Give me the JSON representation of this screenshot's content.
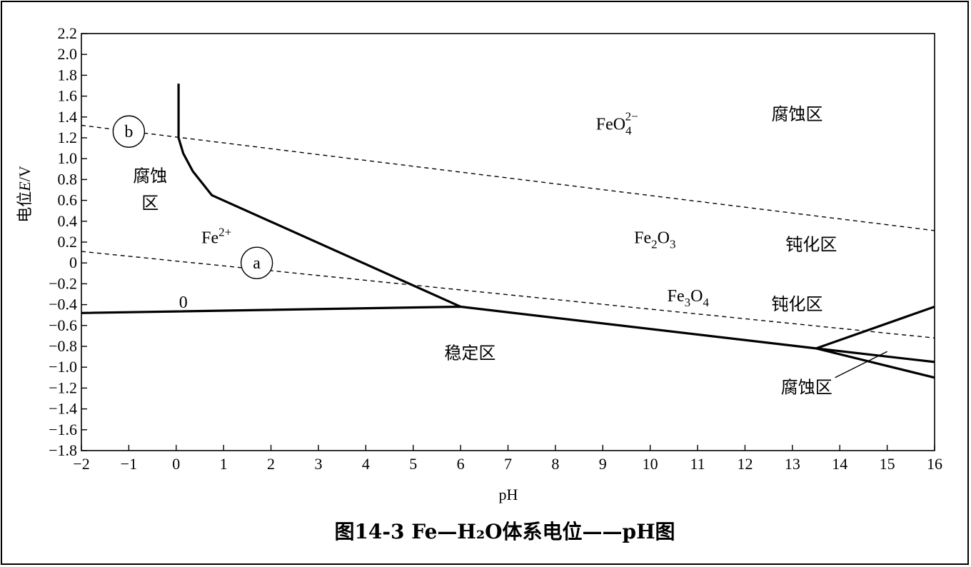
{
  "chart_data": {
    "type": "line",
    "caption": "图14-3    Fe—H₂O体系电位——pH图",
    "xlabel": "pH",
    "ylabel": "电位E/V",
    "xlim": [
      -2,
      16
    ],
    "ylim": [
      -1.8,
      2.2
    ],
    "x_ticks": [
      "−2",
      "−1",
      "0",
      "1",
      "2",
      "3",
      "4",
      "5",
      "6",
      "7",
      "8",
      "9",
      "10",
      "11",
      "12",
      "13",
      "14",
      "15",
      "16"
    ],
    "y_ticks": [
      "2.2",
      "2.0",
      "1.8",
      "1.6",
      "1.4",
      "1.2",
      "1.0",
      "0.8",
      "0.6",
      "0.4",
      "0.2",
      "0",
      "−0.2",
      "−0.4",
      "−0.6",
      "−0.8",
      "−1.0",
      "−1.2",
      "−1.4",
      "−1.6",
      "−1.8"
    ],
    "y_tick_values": [
      2.2,
      2.0,
      1.8,
      1.6,
      1.4,
      1.2,
      1.0,
      0.8,
      0.6,
      0.4,
      0.2,
      0,
      -0.2,
      -0.4,
      -0.6,
      -0.8,
      -1.0,
      -1.2,
      -1.4,
      -1.6,
      -1.8
    ],
    "grid": false,
    "boundaries": [
      {
        "style": "solid",
        "points": [
          [
            0.05,
            1.72
          ],
          [
            0.05,
            1.2
          ],
          [
            0.15,
            1.05
          ],
          [
            0.35,
            0.88
          ],
          [
            0.75,
            0.65
          ],
          [
            6.0,
            -0.42
          ]
        ]
      },
      {
        "style": "solid",
        "points": [
          [
            -2,
            -0.48
          ],
          [
            6.0,
            -0.42
          ],
          [
            13.5,
            -0.82
          ],
          [
            16,
            -0.95
          ]
        ]
      },
      {
        "style": "solid",
        "points": [
          [
            13.5,
            -0.82
          ],
          [
            16,
            -0.42
          ]
        ]
      },
      {
        "style": "solid",
        "points": [
          [
            13.5,
            -0.82
          ],
          [
            16,
            -1.1
          ]
        ]
      }
    ],
    "reference_lines": [
      {
        "name": "a",
        "style": "dashed",
        "points": [
          [
            -2,
            0.11
          ],
          [
            16,
            -0.72
          ]
        ]
      },
      {
        "name": "b",
        "style": "dashed",
        "points": [
          [
            -2,
            1.32
          ],
          [
            16,
            0.31
          ]
        ]
      }
    ],
    "leader_line": {
      "points": [
        [
          13.9,
          -1.1
        ],
        [
          15.0,
          -0.85
        ]
      ]
    },
    "line_markers": [
      {
        "text": "b",
        "x": -1,
        "y": 1.26
      },
      {
        "text": "a",
        "x": 1.7,
        "y": 0.0
      }
    ],
    "annotations": [
      {
        "text": "腐蚀",
        "x": -0.55,
        "y": 0.78,
        "kind": "region"
      },
      {
        "text": "区",
        "x": -0.55,
        "y": 0.52,
        "kind": "region"
      },
      {
        "text": "腐蚀区",
        "x": 13.1,
        "y": 1.37,
        "kind": "region"
      },
      {
        "text": "钝化区",
        "x": 13.4,
        "y": 0.12,
        "kind": "region"
      },
      {
        "text": "钝化区",
        "x": 13.1,
        "y": -0.45,
        "kind": "region"
      },
      {
        "text": "稳定区",
        "x": 6.2,
        "y": -0.92,
        "kind": "region"
      },
      {
        "text": "腐蚀区",
        "x": 13.3,
        "y": -1.25,
        "kind": "region"
      },
      {
        "text": "0",
        "x": 0.15,
        "y": -0.43,
        "kind": "plain"
      }
    ],
    "species": [
      {
        "base": "FeO",
        "sub": "4",
        "sup": "2−",
        "x": 9.3,
        "y": 1.28
      },
      {
        "base": "Fe",
        "sub": "",
        "sup": "2+",
        "x": 0.85,
        "y": 0.19
      },
      {
        "base": "Fe",
        "sub": "2",
        "sup": "",
        "extra": "O",
        "sub2": "3",
        "x": 10.1,
        "y": 0.19
      },
      {
        "base": "Fe",
        "sub": "3",
        "sup": "",
        "extra": "O",
        "sub2": "4",
        "x": 10.8,
        "y": -0.37
      }
    ]
  }
}
